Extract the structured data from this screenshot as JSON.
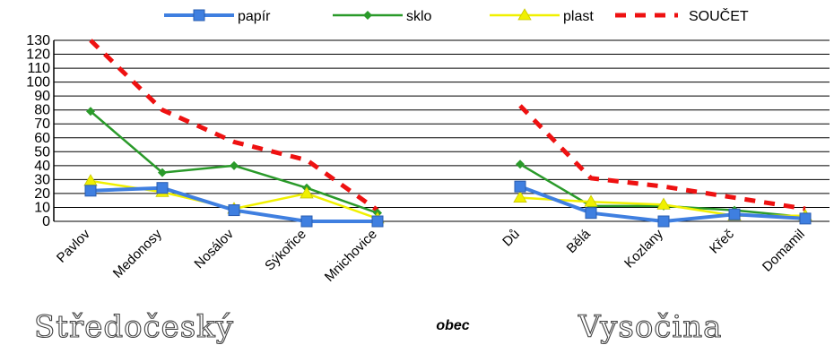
{
  "chart_data": {
    "type": "line",
    "xlabel": "obec",
    "ylim": [
      0,
      130
    ],
    "yticks": [
      0,
      10,
      20,
      30,
      40,
      50,
      60,
      70,
      80,
      90,
      100,
      110,
      120,
      130
    ],
    "legend_position": "top",
    "grid": "horizontal",
    "groups": [
      {
        "region": "Středočeský",
        "categories": [
          "Pavlov",
          "Medonosy",
          "Nosálov",
          "Sýkořice",
          "Mnichovice"
        ],
        "series": [
          {
            "name": "papír",
            "values": [
              22,
              24,
              8,
              0,
              0
            ]
          },
          {
            "name": "sklo",
            "values": [
              79,
              35,
              40,
              24,
              6
            ]
          },
          {
            "name": "plast",
            "values": [
              29,
              21,
              9,
              20,
              2
            ]
          },
          {
            "name": "SOUČET",
            "values": [
              130,
              80,
              57,
              44,
              8
            ]
          }
        ]
      },
      {
        "region": "Vysočina",
        "categories": [
          "Dů",
          "Bělá",
          "Kozlany",
          "Křeč",
          "Domamil"
        ],
        "series": [
          {
            "name": "papír",
            "values": [
              25,
              6,
              0,
              5,
              2
            ]
          },
          {
            "name": "sklo",
            "values": [
              41,
              11,
              11,
              8,
              3
            ]
          },
          {
            "name": "plast",
            "values": [
              17,
              14,
              12,
              4,
              4
            ]
          },
          {
            "name": "SOUČET",
            "values": [
              83,
              31,
              25,
              17,
              9
            ]
          }
        ]
      }
    ],
    "colors": {
      "papír": "#3f7fe0",
      "sklo": "#2a9a2a",
      "plast": "#f0f000",
      "SOUČET": "#ee1111"
    }
  }
}
